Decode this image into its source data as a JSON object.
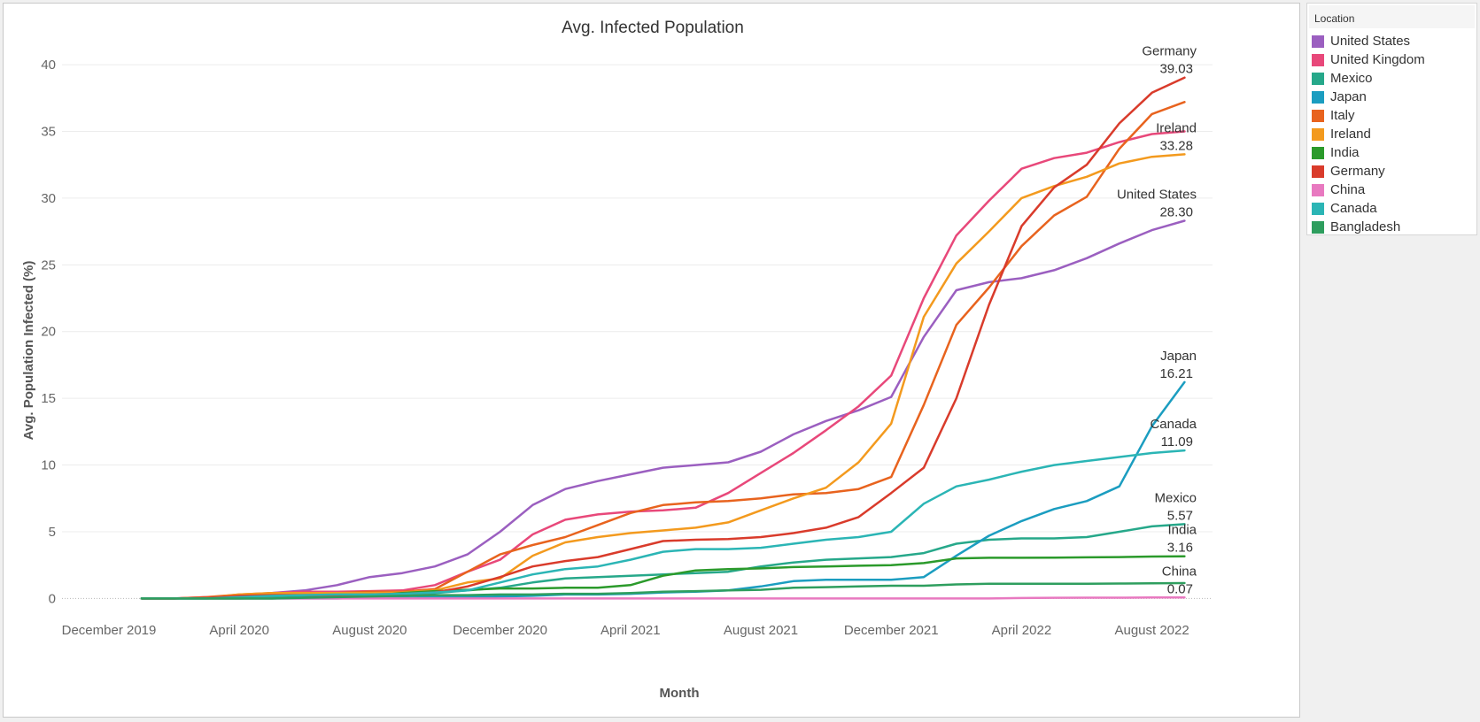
{
  "chart_data": {
    "type": "line",
    "title": "Avg. Infected Population",
    "xlabel": "Month",
    "ylabel": "Avg. Population Infected (%)",
    "ylim": [
      -1.5,
      41
    ],
    "yticks": [
      0,
      5,
      10,
      15,
      20,
      25,
      30,
      35,
      40
    ],
    "xticks": [
      "December 2019",
      "April 2020",
      "August 2020",
      "December 2020",
      "April 2021",
      "August 2021",
      "December 2021",
      "April 2022",
      "August 2022"
    ],
    "x": [
      "2020-01",
      "2020-02",
      "2020-03",
      "2020-04",
      "2020-05",
      "2020-06",
      "2020-07",
      "2020-08",
      "2020-09",
      "2020-10",
      "2020-11",
      "2020-12",
      "2021-01",
      "2021-02",
      "2021-03",
      "2021-04",
      "2021-05",
      "2021-06",
      "2021-07",
      "2021-08",
      "2021-09",
      "2021-10",
      "2021-11",
      "2021-12",
      "2022-01",
      "2022-02",
      "2022-03",
      "2022-04",
      "2022-05",
      "2022-06",
      "2022-07",
      "2022-08",
      "2022-09"
    ],
    "grid": true,
    "legend_position": "right",
    "legend_title": "Location",
    "series": [
      {
        "name": "United States",
        "color": "#9b5fc0",
        "end_label": "United States",
        "end_value": "28.30",
        "values": [
          0.0,
          0.0,
          0.1,
          0.2,
          0.4,
          0.6,
          1.0,
          1.6,
          1.9,
          2.4,
          3.3,
          5.0,
          7.0,
          8.2,
          8.8,
          9.3,
          9.8,
          10.0,
          10.2,
          11.0,
          12.3,
          13.3,
          14.1,
          15.1,
          19.6,
          23.1,
          23.7,
          24.0,
          24.6,
          25.5,
          26.6,
          27.6,
          28.3
        ]
      },
      {
        "name": "United Kingdom",
        "color": "#e8487a",
        "end_label": "",
        "end_value": "",
        "values": [
          0.0,
          0.0,
          0.05,
          0.2,
          0.4,
          0.5,
          0.5,
          0.55,
          0.6,
          1.0,
          2.0,
          2.9,
          4.8,
          5.9,
          6.3,
          6.5,
          6.6,
          6.8,
          7.9,
          9.4,
          10.9,
          12.6,
          14.4,
          16.7,
          22.5,
          27.2,
          29.8,
          32.2,
          33.0,
          33.4,
          34.2,
          34.8,
          35.0
        ]
      },
      {
        "name": "Mexico",
        "color": "#26a88a",
        "end_label": "Mexico",
        "end_value": "5.57",
        "values": [
          0.0,
          0.0,
          0.0,
          0.0,
          0.05,
          0.1,
          0.15,
          0.2,
          0.3,
          0.4,
          0.6,
          0.8,
          1.2,
          1.5,
          1.6,
          1.7,
          1.8,
          1.9,
          2.0,
          2.4,
          2.7,
          2.9,
          3.0,
          3.1,
          3.4,
          4.1,
          4.4,
          4.5,
          4.5,
          4.6,
          5.0,
          5.4,
          5.57
        ]
      },
      {
        "name": "Japan",
        "color": "#1b9dc0",
        "end_label": "Japan",
        "end_value": "16.21",
        "values": [
          0.0,
          0.0,
          0.0,
          0.0,
          0.0,
          0.0,
          0.0,
          0.05,
          0.05,
          0.1,
          0.1,
          0.15,
          0.2,
          0.3,
          0.3,
          0.35,
          0.45,
          0.5,
          0.6,
          0.9,
          1.3,
          1.4,
          1.4,
          1.4,
          1.6,
          3.2,
          4.7,
          5.8,
          6.7,
          7.3,
          8.4,
          12.9,
          16.21
        ]
      },
      {
        "name": "Italy",
        "color": "#e8631e",
        "end_label": "",
        "end_value": "",
        "values": [
          0.0,
          0.0,
          0.1,
          0.3,
          0.4,
          0.4,
          0.4,
          0.5,
          0.5,
          0.7,
          2.0,
          3.3,
          4.0,
          4.6,
          5.5,
          6.4,
          7.0,
          7.2,
          7.3,
          7.5,
          7.8,
          7.9,
          8.2,
          9.1,
          14.5,
          20.5,
          23.3,
          26.4,
          28.7,
          30.1,
          33.7,
          36.3,
          37.2
        ]
      },
      {
        "name": "Ireland",
        "color": "#f39a1e",
        "end_label": "Ireland",
        "end_value": "33.28",
        "values": [
          0.0,
          0.0,
          0.05,
          0.3,
          0.4,
          0.4,
          0.4,
          0.4,
          0.45,
          0.6,
          1.2,
          1.5,
          3.2,
          4.2,
          4.6,
          4.9,
          5.1,
          5.3,
          5.7,
          6.6,
          7.5,
          8.3,
          10.2,
          13.1,
          21.1,
          25.1,
          27.5,
          30.0,
          30.9,
          31.6,
          32.6,
          33.1,
          33.28
        ]
      },
      {
        "name": "India",
        "color": "#2b9a2b",
        "end_label": "India",
        "end_value": "3.16",
        "values": [
          0.0,
          0.0,
          0.0,
          0.0,
          0.0,
          0.05,
          0.1,
          0.2,
          0.4,
          0.55,
          0.65,
          0.75,
          0.75,
          0.8,
          0.8,
          1.0,
          1.7,
          2.1,
          2.2,
          2.25,
          2.35,
          2.4,
          2.45,
          2.5,
          2.65,
          3.0,
          3.05,
          3.05,
          3.06,
          3.08,
          3.1,
          3.14,
          3.16
        ]
      },
      {
        "name": "Germany",
        "color": "#d93b2b",
        "end_label": "Germany",
        "end_value": "39.03",
        "values": [
          0.0,
          0.0,
          0.05,
          0.2,
          0.25,
          0.25,
          0.25,
          0.3,
          0.35,
          0.45,
          0.9,
          1.6,
          2.4,
          2.8,
          3.1,
          3.7,
          4.3,
          4.4,
          4.45,
          4.6,
          4.9,
          5.3,
          6.1,
          7.9,
          9.8,
          15.0,
          22.0,
          27.9,
          30.8,
          32.5,
          35.6,
          37.9,
          39.03
        ]
      },
      {
        "name": "China",
        "color": "#e879c0",
        "end_label": "China",
        "end_value": "0.07",
        "values": [
          0.0,
          0.0,
          0.0,
          0.0,
          0.0,
          0.0,
          0.0,
          0.0,
          0.0,
          0.0,
          0.0,
          0.0,
          0.0,
          0.0,
          0.0,
          0.0,
          0.0,
          0.0,
          0.0,
          0.0,
          0.0,
          0.0,
          0.0,
          0.0,
          0.0,
          0.0,
          0.0,
          0.03,
          0.05,
          0.06,
          0.06,
          0.07,
          0.07
        ]
      },
      {
        "name": "Canada",
        "color": "#2bb5b5",
        "end_label": "Canada",
        "end_value": "11.09",
        "values": [
          0.0,
          0.0,
          0.0,
          0.1,
          0.2,
          0.25,
          0.3,
          0.3,
          0.35,
          0.45,
          0.6,
          1.2,
          1.8,
          2.2,
          2.4,
          2.9,
          3.5,
          3.7,
          3.7,
          3.8,
          4.1,
          4.4,
          4.6,
          5.0,
          7.1,
          8.4,
          8.9,
          9.5,
          10.0,
          10.3,
          10.6,
          10.9,
          11.09
        ]
      },
      {
        "name": "Bangladesh",
        "color": "#2e9e5e",
        "end_label": "",
        "end_value": "",
        "values": [
          0.0,
          0.0,
          0.0,
          0.0,
          0.0,
          0.05,
          0.1,
          0.15,
          0.2,
          0.25,
          0.25,
          0.3,
          0.3,
          0.35,
          0.35,
          0.4,
          0.5,
          0.55,
          0.6,
          0.65,
          0.8,
          0.85,
          0.9,
          0.95,
          0.95,
          1.05,
          1.1,
          1.1,
          1.1,
          1.1,
          1.12,
          1.13,
          1.15
        ]
      }
    ]
  }
}
